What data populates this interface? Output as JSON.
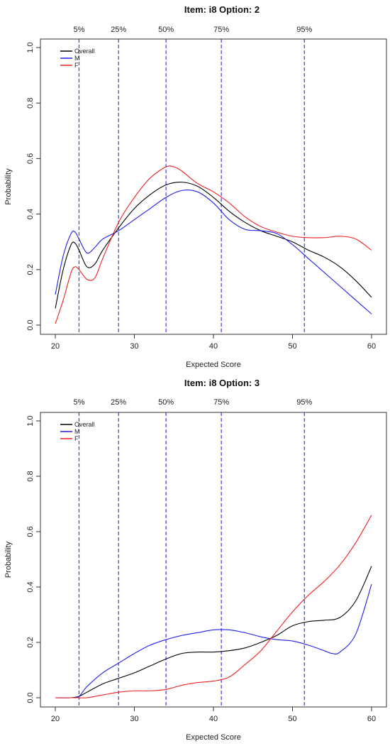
{
  "chart_data": [
    {
      "type": "line",
      "title": "Item:  i8   Option:  2",
      "xlabel": "Expected Score",
      "ylabel": "Probability",
      "xlim": [
        20,
        60
      ],
      "ylim": [
        0,
        1
      ],
      "xticks": [
        20,
        30,
        40,
        50,
        60
      ],
      "yticks": [
        0.0,
        0.2,
        0.4,
        0.6,
        0.8,
        1.0
      ],
      "ytick_labels": [
        "0.0",
        "0.2",
        "0.4",
        "0.6",
        "0.8",
        "1.0"
      ],
      "percentiles": [
        {
          "label": "5%",
          "x": 23.0
        },
        {
          "label": "25%",
          "x": 28.0
        },
        {
          "label": "50%",
          "x": 34.0
        },
        {
          "label": "75%",
          "x": 41.0
        },
        {
          "label": "95%",
          "x": 51.5
        }
      ],
      "legend_position": "top-left",
      "series": [
        {
          "name": "Overall",
          "color": "#000000",
          "x": [
            20,
            21,
            22,
            22.5,
            23,
            24,
            25,
            26,
            28,
            30,
            32,
            34,
            36,
            38,
            40,
            42,
            44,
            46,
            48,
            50,
            52,
            54,
            56,
            58,
            60
          ],
          "y": [
            0.06,
            0.2,
            0.29,
            0.295,
            0.27,
            0.21,
            0.22,
            0.27,
            0.35,
            0.42,
            0.47,
            0.505,
            0.515,
            0.5,
            0.46,
            0.41,
            0.37,
            0.34,
            0.32,
            0.3,
            0.27,
            0.245,
            0.21,
            0.16,
            0.1
          ]
        },
        {
          "name": "M",
          "color": "#2020ee",
          "x": [
            20,
            21,
            22,
            22.5,
            23,
            24,
            25,
            26,
            28,
            30,
            32,
            34,
            36,
            38,
            40,
            42,
            44,
            46,
            48,
            50,
            52,
            54,
            56,
            58,
            60
          ],
          "y": [
            0.11,
            0.25,
            0.33,
            0.335,
            0.31,
            0.26,
            0.28,
            0.31,
            0.34,
            0.38,
            0.42,
            0.46,
            0.485,
            0.48,
            0.44,
            0.38,
            0.345,
            0.34,
            0.33,
            0.29,
            0.24,
            0.19,
            0.14,
            0.09,
            0.04
          ]
        },
        {
          "name": "F",
          "color": "#ee2020",
          "x": [
            20,
            21,
            22,
            22.5,
            23,
            24,
            25,
            26,
            28,
            30,
            32,
            34,
            35,
            36,
            38,
            40,
            42,
            44,
            46,
            48,
            50,
            52,
            54,
            56,
            58,
            60
          ],
          "y": [
            0.005,
            0.09,
            0.19,
            0.21,
            0.2,
            0.165,
            0.17,
            0.24,
            0.37,
            0.46,
            0.53,
            0.57,
            0.57,
            0.555,
            0.51,
            0.48,
            0.44,
            0.39,
            0.355,
            0.335,
            0.32,
            0.315,
            0.315,
            0.32,
            0.31,
            0.27
          ]
        }
      ]
    },
    {
      "type": "line",
      "title": "Item:  i8   Option:  3",
      "xlabel": "Expected Score",
      "ylabel": "Probability",
      "xlim": [
        20,
        60
      ],
      "ylim": [
        0,
        1
      ],
      "xticks": [
        20,
        30,
        40,
        50,
        60
      ],
      "yticks": [
        0.0,
        0.2,
        0.4,
        0.6,
        0.8,
        1.0
      ],
      "ytick_labels": [
        "0.0",
        "0.2",
        "0.4",
        "0.6",
        "0.8",
        "1.0"
      ],
      "percentiles": [
        {
          "label": "5%",
          "x": 23.0
        },
        {
          "label": "25%",
          "x": 28.0
        },
        {
          "label": "50%",
          "x": 34.0
        },
        {
          "label": "75%",
          "x": 41.0
        },
        {
          "label": "95%",
          "x": 51.5
        }
      ],
      "legend_position": "top-left",
      "series": [
        {
          "name": "Overall",
          "color": "#000000",
          "x": [
            20,
            22,
            23,
            24,
            26,
            28,
            30,
            32,
            34,
            36,
            38,
            40,
            42,
            44,
            46,
            48,
            50,
            52,
            54,
            56,
            58,
            60
          ],
          "y": [
            0.0,
            0.0,
            0.005,
            0.02,
            0.05,
            0.07,
            0.09,
            0.115,
            0.14,
            0.16,
            0.165,
            0.165,
            0.17,
            0.18,
            0.2,
            0.225,
            0.26,
            0.275,
            0.28,
            0.29,
            0.35,
            0.475
          ]
        },
        {
          "name": "M",
          "color": "#2020ee",
          "x": [
            20,
            22,
            23,
            24,
            26,
            28,
            30,
            32,
            34,
            36,
            38,
            40,
            42,
            44,
            46,
            48,
            50,
            52,
            54,
            55,
            56,
            58,
            60
          ],
          "y": [
            0.0,
            0.0,
            0.005,
            0.04,
            0.09,
            0.125,
            0.16,
            0.19,
            0.21,
            0.225,
            0.235,
            0.245,
            0.245,
            0.235,
            0.22,
            0.21,
            0.205,
            0.19,
            0.17,
            0.16,
            0.165,
            0.23,
            0.41
          ]
        },
        {
          "name": "F",
          "color": "#ee2020",
          "x": [
            20,
            22,
            23,
            24,
            26,
            28,
            30,
            32,
            34,
            36,
            38,
            40,
            42,
            44,
            46,
            48,
            50,
            52,
            54,
            56,
            58,
            60
          ],
          "y": [
            0.0,
            0.0,
            0.0,
            0.0,
            0.01,
            0.02,
            0.025,
            0.025,
            0.03,
            0.045,
            0.055,
            0.06,
            0.075,
            0.12,
            0.17,
            0.24,
            0.31,
            0.37,
            0.42,
            0.48,
            0.56,
            0.66
          ]
        }
      ]
    }
  ]
}
